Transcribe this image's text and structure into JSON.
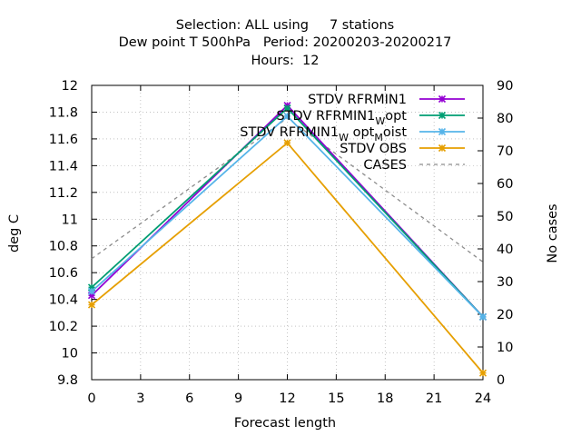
{
  "chart_data": {
    "type": "line",
    "title_lines": [
      "Selection: ALL using     7 stations",
      "Dew point T 500hPa   Period: 20200203-20200217",
      "Hours:  12"
    ],
    "xlabel": "Forecast length",
    "ylabel": "deg C",
    "y2label": "No cases",
    "xlim": [
      0,
      24
    ],
    "ylim": [
      9.8,
      12
    ],
    "y2lim": [
      0,
      90
    ],
    "xticks": [
      "0",
      "3",
      "6",
      "9",
      "12",
      "15",
      "18",
      "21",
      "24"
    ],
    "yticks": [
      "9.8",
      "10",
      "10.2",
      "10.4",
      "10.6",
      "10.8",
      "11",
      "11.2",
      "11.4",
      "11.6",
      "11.8",
      "12"
    ],
    "y2ticks": [
      "0",
      "10",
      "20",
      "30",
      "40",
      "50",
      "60",
      "70",
      "80",
      "90"
    ],
    "grid": true,
    "legend_position": "top-right",
    "x": [
      0,
      12,
      24
    ],
    "series": [
      {
        "name": "STDV RFRMIN1",
        "color": "#9400d3",
        "marker": "x-star",
        "values": [
          10.43,
          11.85,
          10.27
        ]
      },
      {
        "name": "STDV RFRMIN1",
        "name_sub": "W",
        "name_suffix": "opt",
        "color": "#009e73",
        "marker": "x-star",
        "values": [
          10.49,
          11.83,
          10.27
        ]
      },
      {
        "name": "STDV RFRMIN1",
        "name_sub": "W",
        "name_mid": "opt",
        "name_sub2": "M",
        "name_suffix": "oist",
        "color": "#56b4e9",
        "marker": "x-star",
        "values": [
          10.46,
          11.77,
          10.27
        ]
      },
      {
        "name": "STDV OBS",
        "color": "#e69f00",
        "marker": "x-star",
        "values": [
          10.36,
          11.57,
          9.85
        ]
      },
      {
        "name": "CASES",
        "color": "#8c8c8c",
        "marker": "none",
        "dashed": true,
        "axis": "y2",
        "values": [
          37,
          80,
          36
        ]
      }
    ]
  }
}
